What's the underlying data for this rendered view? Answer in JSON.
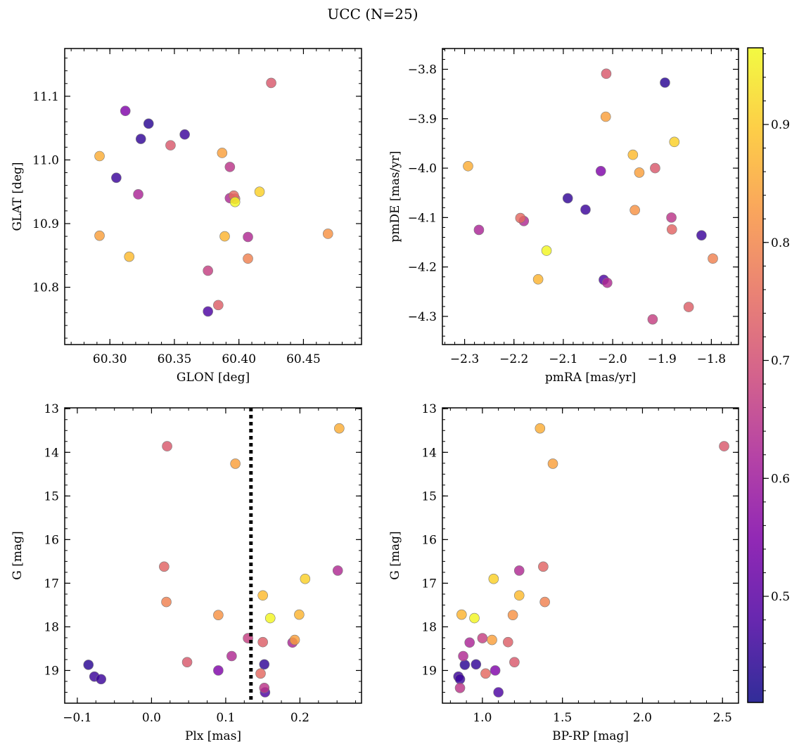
{
  "figure": {
    "title": "UCC (N=25)"
  },
  "colorbar": {
    "colormap": "plasma",
    "vmin": 0.41,
    "vmax": 0.965,
    "ticks": [
      0.5,
      0.6,
      0.7,
      0.8,
      0.9
    ],
    "tick_labels": [
      "0.5",
      "0.6",
      "0.7",
      "0.8",
      "0.9"
    ]
  },
  "stars": {
    "prob": [
      0.72,
      0.55,
      0.44,
      0.45,
      0.46,
      0.72,
      0.86,
      0.84,
      0.46,
      0.65,
      0.62,
      0.75,
      0.63,
      0.74,
      0.96,
      0.91,
      0.84,
      0.87,
      0.63,
      0.82,
      0.88,
      0.79,
      0.67,
      0.48,
      0.73
    ],
    "glon": [
      60.425,
      60.312,
      60.33,
      60.324,
      60.358,
      60.347,
      60.292,
      60.387,
      60.305,
      60.393,
      60.322,
      60.396,
      60.393,
      60.397,
      60.397,
      60.416,
      60.292,
      60.389,
      60.407,
      60.469,
      60.315,
      60.407,
      60.376,
      60.376,
      60.384
    ],
    "glat": [
      11.121,
      11.077,
      11.057,
      11.033,
      11.04,
      11.023,
      11.006,
      11.011,
      10.972,
      10.989,
      10.946,
      10.944,
      10.94,
      10.939,
      10.934,
      10.95,
      10.881,
      10.88,
      10.879,
      10.884,
      10.848,
      10.845,
      10.826,
      10.762,
      10.772
    ],
    "pmra": [
      -2.013,
      -2.024,
      -1.894,
      -2.091,
      -2.055,
      -1.914,
      -2.293,
      -1.946,
      -1.82,
      -1.881,
      -2.271,
      -2.187,
      -2.18,
      -1.88,
      -2.134,
      -1.875,
      -2.014,
      -2.151,
      -2.011,
      -1.955,
      -1.959,
      -1.797,
      -1.919,
      -2.018,
      -1.846
    ],
    "pmde": [
      -3.809,
      -4.006,
      -3.827,
      -4.061,
      -4.084,
      -4.0,
      -3.996,
      -4.009,
      -4.136,
      -4.1,
      -4.125,
      -4.101,
      -4.107,
      -4.124,
      -4.167,
      -3.947,
      -3.896,
      -4.225,
      -4.232,
      -4.085,
      -3.973,
      -4.183,
      -4.306,
      -4.226,
      -4.281
    ],
    "plx": [
      0.021,
      0.09,
      -0.085,
      0.152,
      -0.077,
      0.048,
      0.253,
      0.113,
      -0.068,
      0.152,
      0.19,
      0.147,
      0.251,
      0.017,
      0.16,
      0.207,
      0.193,
      0.199,
      0.108,
      0.09,
      0.15,
      0.02,
      0.13,
      0.153,
      0.15
    ],
    "gmag": [
      13.86,
      19.0,
      18.87,
      18.86,
      19.14,
      18.81,
      13.45,
      14.26,
      19.2,
      19.4,
      18.36,
      19.07,
      16.71,
      16.62,
      17.8,
      16.9,
      18.3,
      17.72,
      18.67,
      17.73,
      17.28,
      17.43,
      18.26,
      19.5,
      18.35
    ],
    "bprp": [
      2.51,
      1.08,
      0.89,
      0.96,
      0.85,
      1.2,
      1.36,
      1.44,
      0.86,
      0.86,
      0.92,
      1.02,
      1.23,
      1.38,
      0.95,
      1.07,
      1.06,
      0.87,
      0.88,
      1.19,
      1.23,
      1.39,
      1.0,
      1.1,
      1.16
    ]
  },
  "panels": [
    {
      "id": "spatial",
      "xkey": "glon",
      "ykey": "glat",
      "xlabel": "GLON [deg]",
      "ylabel": "GLAT [deg]",
      "xlim": [
        60.265,
        60.495
      ],
      "ylim": [
        10.71,
        11.175
      ],
      "xticks": [
        60.3,
        60.35,
        60.4,
        60.45
      ],
      "xtick_labels": [
        "60.30",
        "60.35",
        "60.40",
        "60.45"
      ],
      "yticks": [
        10.8,
        10.9,
        11.0,
        11.1
      ],
      "ytick_labels": [
        "10.8",
        "10.9",
        "11.0",
        "11.1"
      ],
      "xminor": 0.01,
      "yminor": 0.02,
      "invert_y": false
    },
    {
      "id": "propermotion",
      "xkey": "pmra",
      "ykey": "pmde",
      "xlabel": "pmRA [mas/yr]",
      "ylabel": "pmDE [mas/yr]",
      "xlim": [
        -2.345,
        -1.745
      ],
      "ylim": [
        -4.357,
        -3.758
      ],
      "xticks": [
        -2.3,
        -2.2,
        -2.1,
        -2.0,
        -1.9,
        -1.8
      ],
      "xtick_labels": [
        "−2.3",
        "−2.2",
        "−2.1",
        "−2.0",
        "−1.9",
        "−1.8"
      ],
      "yticks": [
        -4.3,
        -4.2,
        -4.1,
        -4.0,
        -3.9,
        -3.8
      ],
      "ytick_labels": [
        "−4.3",
        "−4.2",
        "−4.1",
        "−4.0",
        "−3.9",
        "−3.8"
      ],
      "xminor": 0.02,
      "yminor": 0.02,
      "invert_y": false
    },
    {
      "id": "parallax",
      "xkey": "plx",
      "ykey": "gmag",
      "xlabel": "Plx [mas]",
      "ylabel": "G [mag]",
      "xlim": [
        -0.117,
        0.283
      ],
      "ylim": [
        12.98,
        19.75
      ],
      "xticks": [
        -0.1,
        0.0,
        0.1,
        0.2
      ],
      "xtick_labels": [
        "−0.1",
        "0.0",
        "0.1",
        "0.2"
      ],
      "yticks": [
        13,
        14,
        15,
        16,
        17,
        18,
        19
      ],
      "ytick_labels": [
        "13",
        "14",
        "15",
        "16",
        "17",
        "18",
        "19"
      ],
      "xminor": 0.025,
      "yminor": 0.25,
      "invert_y": true,
      "vline": 0.134
    },
    {
      "id": "cmd",
      "xkey": "bprp",
      "ykey": "gmag",
      "xlabel": "BP-RP [mag]",
      "ylabel": "G [mag]",
      "xlim": [
        0.75,
        2.6
      ],
      "ylim": [
        12.98,
        19.75
      ],
      "xticks": [
        1.0,
        1.5,
        2.0,
        2.5
      ],
      "xtick_labels": [
        "1.0",
        "1.5",
        "2.0",
        "2.5"
      ],
      "yticks": [
        13,
        14,
        15,
        16,
        17,
        18,
        19
      ],
      "ytick_labels": [
        "13",
        "14",
        "15",
        "16",
        "17",
        "18",
        "19"
      ],
      "xminor": 0.1,
      "yminor": 0.25,
      "invert_y": true
    }
  ],
  "chart_data": [
    {
      "type": "scatter",
      "title": "UCC (N=25)",
      "xlabel": "GLON [deg]",
      "ylabel": "GLAT [deg]",
      "xlim": [
        60.265,
        60.495
      ],
      "ylim": [
        10.71,
        11.175
      ],
      "x_from": "stars.glon",
      "y_from": "stars.glat",
      "color_from": "stars.prob"
    },
    {
      "type": "scatter",
      "xlabel": "pmRA [mas/yr]",
      "ylabel": "pmDE [mas/yr]",
      "xlim": [
        -2.345,
        -1.745
      ],
      "ylim": [
        -4.357,
        -3.758
      ],
      "x_from": "stars.pmra",
      "y_from": "stars.pmde",
      "color_from": "stars.prob"
    },
    {
      "type": "scatter",
      "xlabel": "Plx [mas]",
      "ylabel": "G [mag]",
      "xlim": [
        -0.117,
        0.283
      ],
      "ylim": [
        19.75,
        12.98
      ],
      "x_from": "stars.plx",
      "y_from": "stars.gmag",
      "color_from": "stars.prob",
      "annotation": "dotted vertical line at Plx = 0.134"
    },
    {
      "type": "scatter",
      "xlabel": "BP-RP [mag]",
      "ylabel": "G [mag]",
      "xlim": [
        0.75,
        2.6
      ],
      "ylim": [
        19.75,
        12.98
      ],
      "x_from": "stars.bprp",
      "y_from": "stars.gmag",
      "color_from": "stars.prob"
    }
  ]
}
